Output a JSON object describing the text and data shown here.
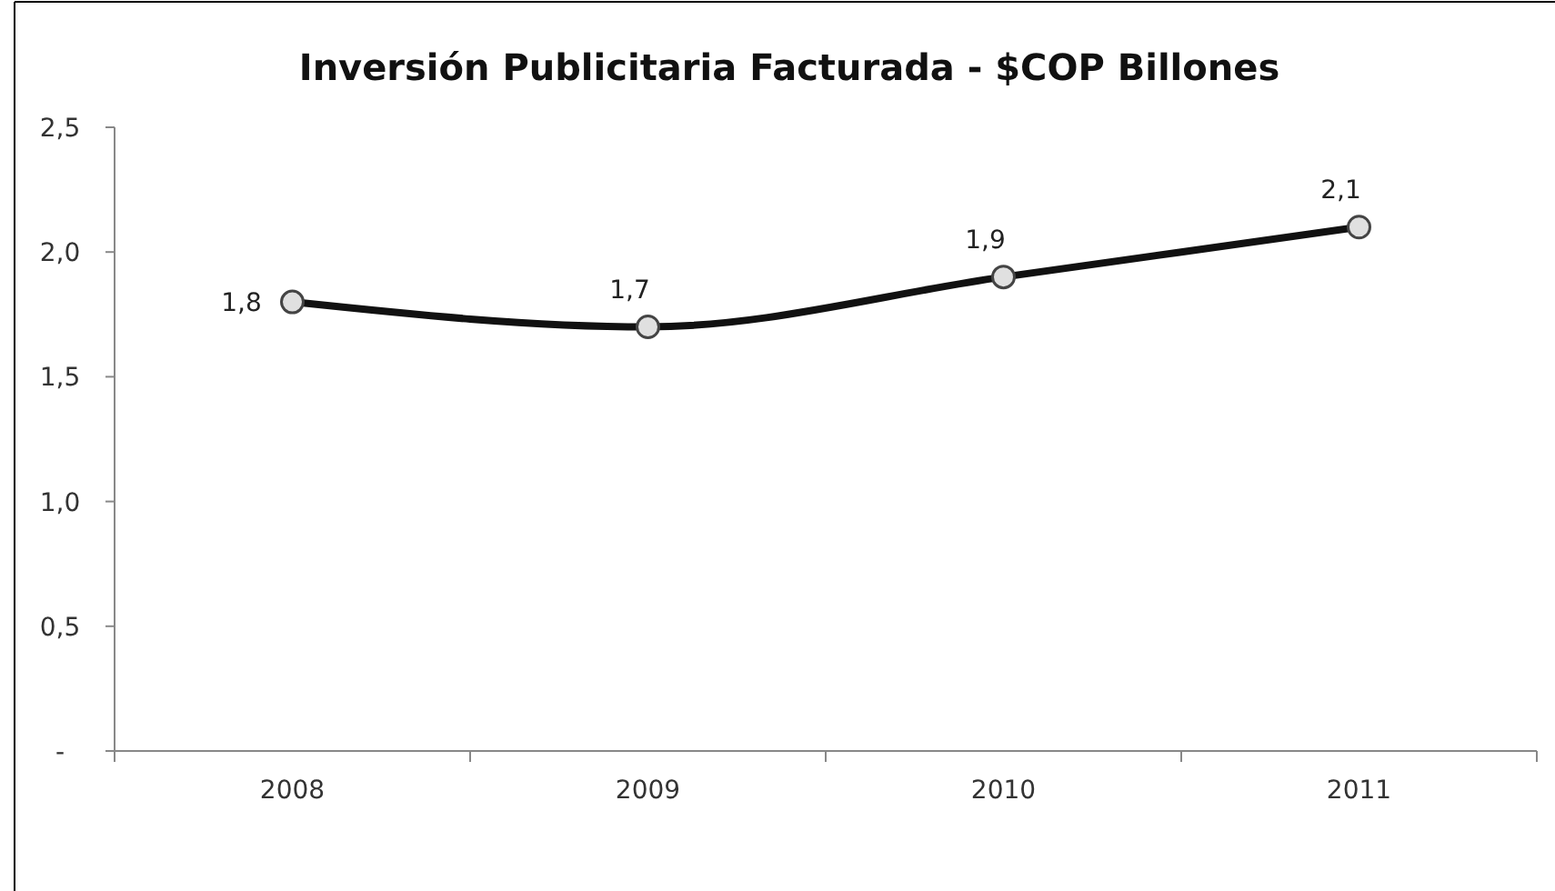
{
  "chart_data": {
    "type": "line",
    "title": "Inversión Publicitaria Facturada - $COP Billones",
    "categories": [
      "2008",
      "2009",
      "2010",
      "2011"
    ],
    "series": [
      {
        "color": "#111111",
        "values": [
          1.8,
          1.7,
          1.9,
          2.1
        ],
        "value_labels": [
          "1,8",
          "1,7",
          "1,9",
          "2,1"
        ]
      }
    ],
    "ylim": [
      0,
      2.5
    ],
    "yticks": [
      {
        "value": 0,
        "label": "-"
      },
      {
        "value": 0.5,
        "label": "0,5"
      },
      {
        "value": 1,
        "label": "1,0"
      },
      {
        "value": 1.5,
        "label": "1,5"
      },
      {
        "value": 2,
        "label": "2,0"
      },
      {
        "value": 2.5,
        "label": "2,5"
      }
    ],
    "marker": "circle",
    "grid": false
  }
}
